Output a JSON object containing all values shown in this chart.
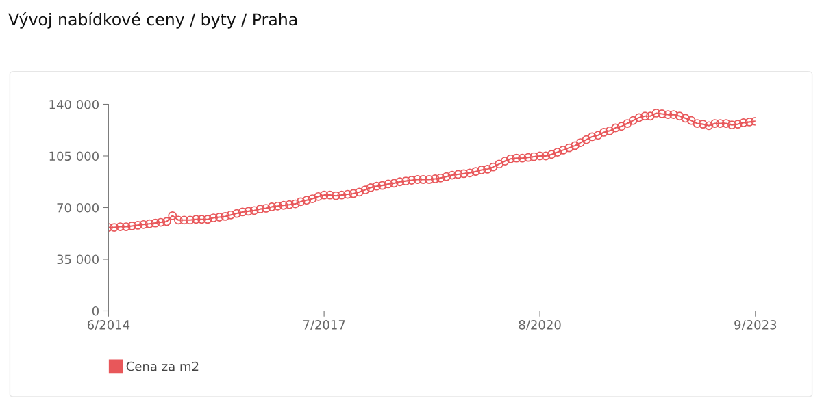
{
  "chart_data": {
    "type": "line",
    "title": "Vývoj nabídkové ceny / byty / Praha",
    "x": [
      "2014-06",
      "2014-07",
      "2014-08",
      "2014-09",
      "2014-10",
      "2014-11",
      "2014-12",
      "2015-01",
      "2015-02",
      "2015-03",
      "2015-04",
      "2015-05",
      "2015-06",
      "2015-07",
      "2015-08",
      "2015-09",
      "2015-10",
      "2015-11",
      "2015-12",
      "2016-01",
      "2016-02",
      "2016-03",
      "2016-04",
      "2016-05",
      "2016-06",
      "2016-07",
      "2016-08",
      "2016-09",
      "2016-10",
      "2016-11",
      "2016-12",
      "2017-01",
      "2017-02",
      "2017-03",
      "2017-04",
      "2017-05",
      "2017-06",
      "2017-07",
      "2017-08",
      "2017-09",
      "2017-10",
      "2017-11",
      "2017-12",
      "2018-01",
      "2018-02",
      "2018-03",
      "2018-04",
      "2018-05",
      "2018-06",
      "2018-07",
      "2018-08",
      "2018-09",
      "2018-10",
      "2018-11",
      "2018-12",
      "2019-01",
      "2019-02",
      "2019-03",
      "2019-04",
      "2019-05",
      "2019-06",
      "2019-07",
      "2019-08",
      "2019-09",
      "2019-10",
      "2019-11",
      "2019-12",
      "2020-01",
      "2020-02",
      "2020-03",
      "2020-04",
      "2020-05",
      "2020-06",
      "2020-07",
      "2020-08",
      "2020-09",
      "2020-10",
      "2020-11",
      "2020-12",
      "2021-01",
      "2021-02",
      "2021-03",
      "2021-04",
      "2021-05",
      "2021-06",
      "2021-07",
      "2021-08",
      "2021-09",
      "2021-10",
      "2021-11",
      "2021-12",
      "2022-01",
      "2022-02",
      "2022-03",
      "2022-04",
      "2022-05",
      "2022-06",
      "2022-07",
      "2022-08",
      "2022-09",
      "2022-10",
      "2022-11",
      "2022-12",
      "2023-01",
      "2023-02",
      "2023-03",
      "2023-04",
      "2023-05",
      "2023-06",
      "2023-07",
      "2023-08",
      "2023-09"
    ],
    "series": [
      {
        "name": "Cena za m2",
        "color": "#e8575a",
        "values": [
          56500,
          56500,
          57000,
          57000,
          57500,
          58000,
          58500,
          59000,
          59500,
          60000,
          60500,
          64500,
          61500,
          61500,
          61500,
          62000,
          62000,
          62000,
          63000,
          63500,
          64000,
          65000,
          66000,
          67000,
          67500,
          68000,
          69000,
          69500,
          70500,
          71000,
          71500,
          72000,
          72500,
          74000,
          75000,
          76000,
          77500,
          78500,
          78500,
          78000,
          78500,
          79000,
          79500,
          80500,
          82000,
          83500,
          84500,
          85000,
          86000,
          86500,
          87500,
          88000,
          88500,
          89000,
          89000,
          89000,
          89500,
          90000,
          91000,
          92000,
          92500,
          93000,
          93500,
          94500,
          95500,
          96000,
          97500,
          99500,
          101500,
          103000,
          103500,
          103500,
          104000,
          104500,
          105000,
          105000,
          106000,
          107500,
          109000,
          110500,
          112000,
          114000,
          116000,
          118000,
          119000,
          121000,
          122000,
          124000,
          125000,
          127000,
          129000,
          131000,
          132000,
          132000,
          134000,
          133500,
          133000,
          133000,
          132000,
          130500,
          129000,
          127000,
          126500,
          125500,
          127000,
          127000,
          127000,
          126000,
          126500,
          127500,
          128000,
          128500
        ]
      }
    ],
    "xlim": [
      "2014-06",
      "2023-09"
    ],
    "xticks": [
      {
        "value": "2014-06",
        "label": "6/2014"
      },
      {
        "value": "2017-07",
        "label": "7/2017"
      },
      {
        "value": "2020-08",
        "label": "8/2020"
      },
      {
        "value": "2023-09",
        "label": "9/2023"
      }
    ],
    "ylim": [
      0,
      140000
    ],
    "yticks": [
      {
        "value": 0,
        "label": "0"
      },
      {
        "value": 35000,
        "label": "35 000"
      },
      {
        "value": 70000,
        "label": "70 000"
      },
      {
        "value": 105000,
        "label": "105 000"
      },
      {
        "value": 140000,
        "label": "140 000"
      }
    ],
    "marker": "circle",
    "grid": false,
    "legend": "bottom left"
  }
}
